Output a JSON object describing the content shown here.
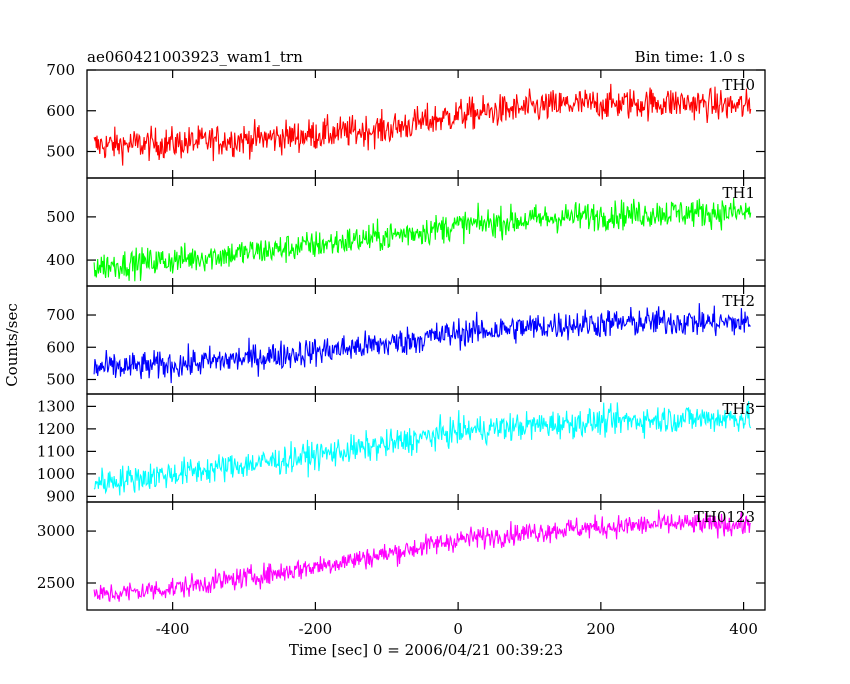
{
  "header": {
    "left_title": "ae060421003923_wam1_trn",
    "right_title": "Bin time: 1.0 s"
  },
  "chart_data": {
    "type": "line",
    "xlabel": "Time [sec] 0 = 2006/04/21 00:39:23",
    "ylabel": "Counts/sec",
    "xlim": [
      -520,
      430
    ],
    "x_ticks": [
      -400,
      -200,
      0,
      200,
      400
    ],
    "x_range": [
      -510,
      410
    ],
    "x_step": 1,
    "panels": [
      {
        "name": "TH0",
        "color": "#ff0000",
        "ylim": [
          435,
          700
        ],
        "y_ticks": [
          500,
          600,
          700
        ],
        "trend": [
          [
            -510,
            515
          ],
          [
            -400,
            520
          ],
          [
            -250,
            535
          ],
          [
            -100,
            555
          ],
          [
            0,
            590
          ],
          [
            150,
            615
          ],
          [
            300,
            620
          ],
          [
            410,
            610
          ]
        ],
        "noise": 28
      },
      {
        "name": "TH1",
        "color": "#00ff00",
        "ylim": [
          340,
          590
        ],
        "y_ticks": [
          400,
          500
        ],
        "trend": [
          [
            -510,
            385
          ],
          [
            -400,
            400
          ],
          [
            -250,
            425
          ],
          [
            -100,
            455
          ],
          [
            0,
            480
          ],
          [
            150,
            500
          ],
          [
            300,
            510
          ],
          [
            410,
            510
          ]
        ],
        "noise": 24
      },
      {
        "name": "TH2",
        "color": "#0000ff",
        "ylim": [
          455,
          790
        ],
        "y_ticks": [
          500,
          600,
          700
        ],
        "trend": [
          [
            -510,
            535
          ],
          [
            -400,
            545
          ],
          [
            -250,
            575
          ],
          [
            -100,
            610
          ],
          [
            0,
            645
          ],
          [
            150,
            670
          ],
          [
            300,
            680
          ],
          [
            410,
            675
          ]
        ],
        "noise": 32
      },
      {
        "name": "TH3",
        "color": "#00ffff",
        "ylim": [
          875,
          1355
        ],
        "y_ticks": [
          900,
          1000,
          1100,
          1200,
          1300
        ],
        "trend": [
          [
            -510,
            960
          ],
          [
            -400,
            1000
          ],
          [
            -250,
            1060
          ],
          [
            -100,
            1130
          ],
          [
            0,
            1190
          ],
          [
            150,
            1225
          ],
          [
            300,
            1245
          ],
          [
            410,
            1250
          ]
        ],
        "noise": 45
      },
      {
        "name": "TH0123",
        "color": "#ff00ff",
        "ylim": [
          2240,
          3280
        ],
        "y_ticks": [
          2500,
          3000
        ],
        "trend": [
          [
            -510,
            2380
          ],
          [
            -400,
            2450
          ],
          [
            -250,
            2600
          ],
          [
            -100,
            2780
          ],
          [
            0,
            2920
          ],
          [
            150,
            3020
          ],
          [
            300,
            3070
          ],
          [
            410,
            3060
          ]
        ],
        "noise": 75
      }
    ]
  }
}
